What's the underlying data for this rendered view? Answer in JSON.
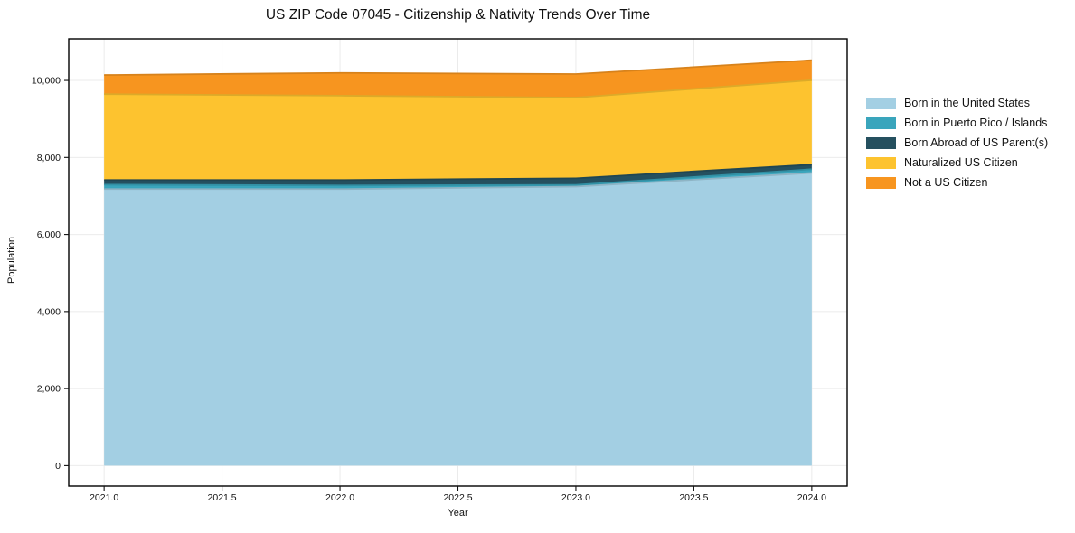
{
  "page": {
    "background": "#ffffff"
  },
  "chart_data": {
    "type": "area",
    "stacked": true,
    "title": "US ZIP Code 07045 - Citizenship & Nativity Trends Over Time",
    "xlabel": "Year",
    "ylabel": "Population",
    "x": [
      2021,
      2022,
      2023,
      2024
    ],
    "series": [
      {
        "name": "Born in the United States",
        "color": "#a3cfe3",
        "values": [
          7180,
          7180,
          7245,
          7600
        ]
      },
      {
        "name": "Born in Puerto Rico / Islands",
        "color": "#3aa5bc",
        "values": [
          115,
          95,
          45,
          95
        ]
      },
      {
        "name": "Born Abroad of US Parent(s)",
        "color": "#25505f",
        "values": [
          120,
          140,
          170,
          120
        ]
      },
      {
        "name": "Naturalized US Citizen",
        "color": "#fdc32f",
        "values": [
          2230,
          2190,
          2095,
          2190
        ]
      },
      {
        "name": "Not a US Citizen",
        "color": "#f7951f",
        "values": [
          495,
          590,
          610,
          520
        ]
      }
    ],
    "stacked_totals": [
      10140,
      10195,
      10165,
      10525
    ],
    "x_ticks": [
      2021.0,
      2021.5,
      2022.0,
      2022.5,
      2023.0,
      2023.5,
      2024.0
    ],
    "x_tick_labels": [
      "2021.0",
      "2021.5",
      "2022.0",
      "2022.5",
      "2023.0",
      "2023.5",
      "2024.0"
    ],
    "y_ticks": [
      0,
      2000,
      4000,
      6000,
      8000,
      10000
    ],
    "y_tick_labels": [
      "0",
      "2,000",
      "4,000",
      "6,000",
      "8,000",
      "10,000"
    ],
    "xlim": [
      2020.85,
      2024.15
    ],
    "ylim": [
      -530,
      11080
    ],
    "grid": true,
    "legend_position": "right",
    "style": {
      "grid_color": "#ebebeb",
      "spine_color": "#000000",
      "tick_color": "#111111",
      "text_color": "#111111",
      "background": "#ffffff"
    }
  }
}
